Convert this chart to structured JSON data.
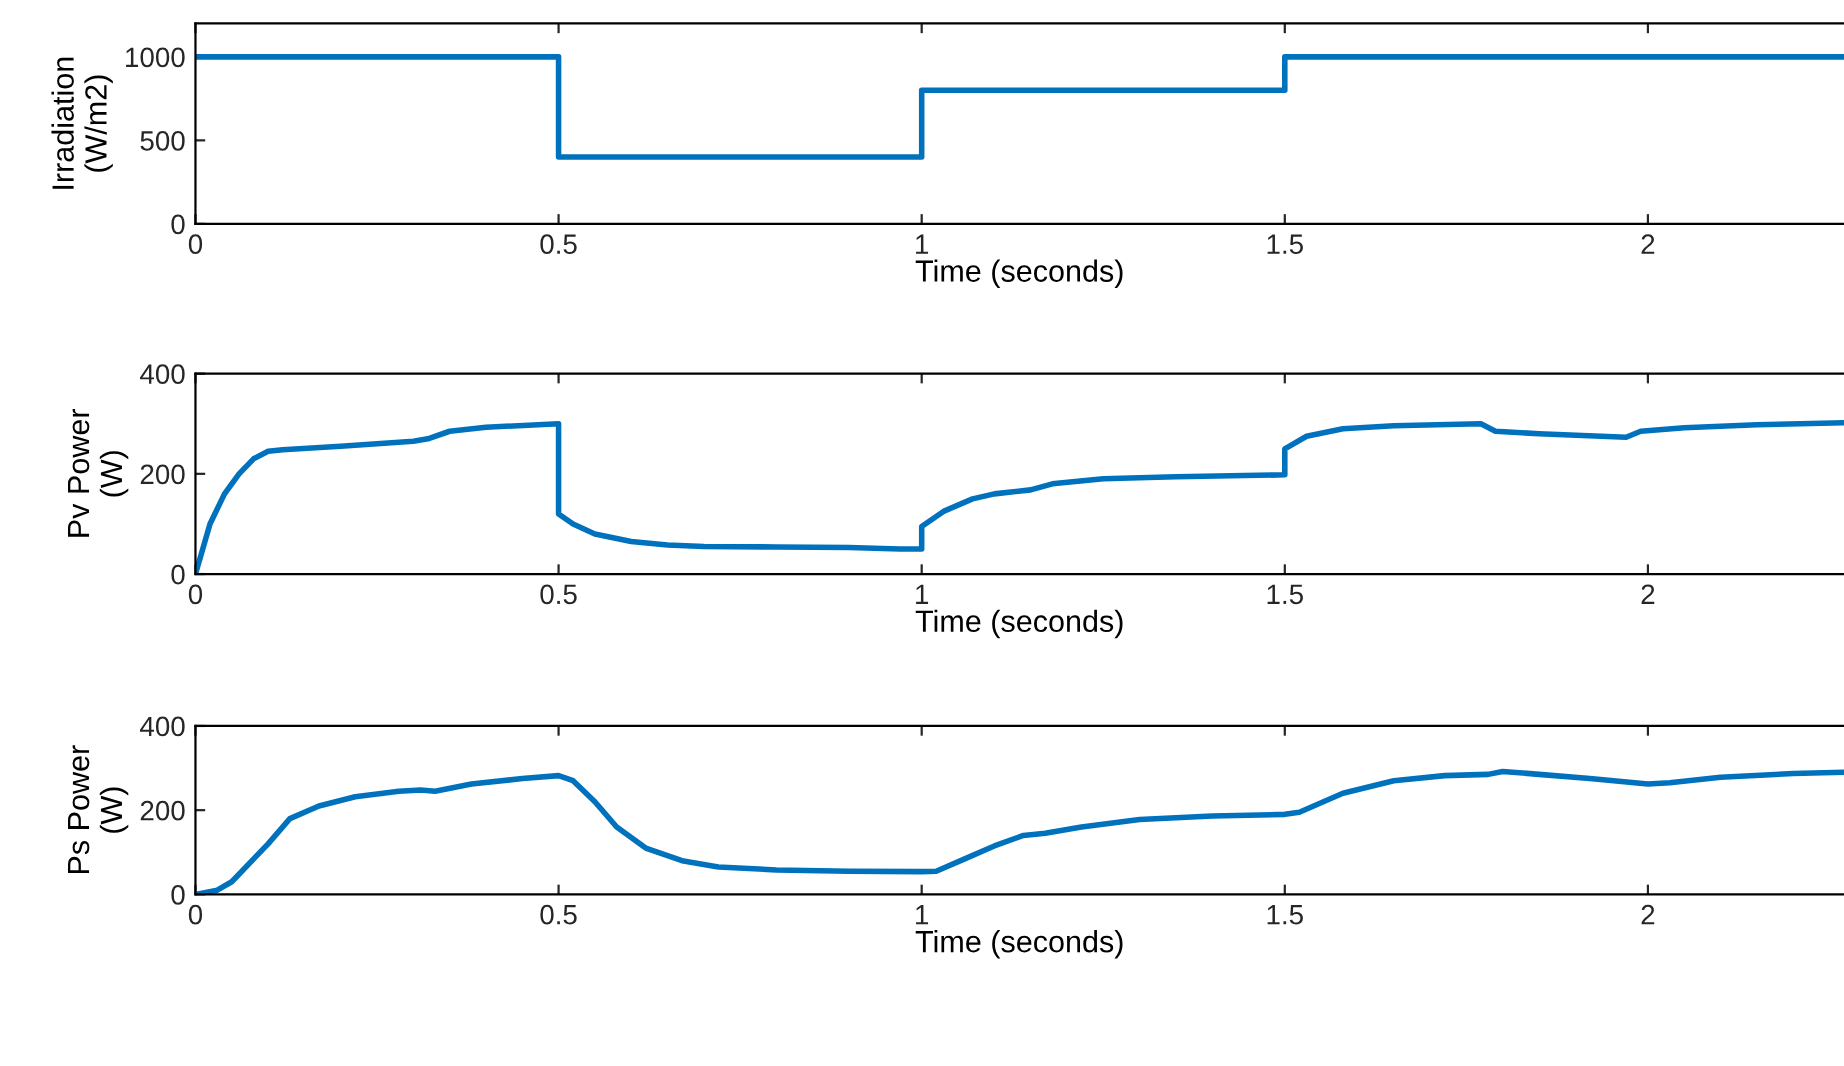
{
  "chart_data": [
    {
      "type": "step",
      "ylabel": "Irradiation\n(W/m2)",
      "xlabel": "Time (seconds)",
      "xlim": [
        0,
        2.27
      ],
      "xticks": [
        0,
        0.5,
        1,
        1.5,
        2
      ],
      "ylim": [
        0,
        1200
      ],
      "yticks": [
        0,
        500,
        1000
      ],
      "grid": false,
      "legend": false,
      "series": [
        {
          "color": "#0072bd",
          "x": [
            0,
            0.5,
            1,
            1.5,
            2.27
          ],
          "values": [
            1000,
            400,
            800,
            1000,
            1000
          ]
        }
      ]
    },
    {
      "type": "line",
      "ylabel": "Pv Power\n(W)",
      "xlabel": "Time (seconds)",
      "xlim": [
        0,
        2.27
      ],
      "xticks": [
        0,
        0.5,
        1,
        1.5,
        2
      ],
      "ylim": [
        0,
        400
      ],
      "yticks": [
        0,
        200,
        400
      ],
      "grid": false,
      "legend": false,
      "series": [
        {
          "color": "#0072bd",
          "x": [
            0,
            0.02,
            0.04,
            0.06,
            0.08,
            0.1,
            0.12,
            0.2,
            0.3,
            0.32,
            0.35,
            0.4,
            0.5,
            0.5,
            0.52,
            0.55,
            0.6,
            0.65,
            0.7,
            0.8,
            0.9,
            0.97,
            1.0,
            1.0,
            1.03,
            1.07,
            1.1,
            1.15,
            1.18,
            1.25,
            1.35,
            1.5,
            1.5,
            1.53,
            1.58,
            1.65,
            1.77,
            1.79,
            1.85,
            1.97,
            1.99,
            2.05,
            2.15,
            2.27
          ],
          "values": [
            0,
            100,
            160,
            200,
            230,
            245,
            248,
            255,
            265,
            270,
            285,
            293,
            300,
            120,
            100,
            80,
            65,
            58,
            55,
            54,
            53,
            50,
            50,
            95,
            125,
            150,
            160,
            168,
            180,
            190,
            194,
            198,
            250,
            275,
            290,
            296,
            300,
            285,
            280,
            273,
            285,
            292,
            298,
            302
          ]
        }
      ]
    },
    {
      "type": "line",
      "ylabel": "Ps Power\n(W)",
      "xlabel": "Time (seconds)",
      "xlim": [
        0,
        2.27
      ],
      "xticks": [
        0,
        0.5,
        1,
        1.5,
        2
      ],
      "ylim": [
        0,
        400
      ],
      "yticks": [
        0,
        200,
        400
      ],
      "grid": false,
      "legend": false,
      "series": [
        {
          "color": "#0072bd",
          "x": [
            0,
            0.03,
            0.05,
            0.1,
            0.13,
            0.17,
            0.22,
            0.28,
            0.31,
            0.33,
            0.38,
            0.45,
            0.5,
            0.52,
            0.55,
            0.58,
            0.62,
            0.67,
            0.72,
            0.8,
            0.9,
            1.0,
            1.02,
            1.06,
            1.1,
            1.14,
            1.17,
            1.22,
            1.3,
            1.4,
            1.5,
            1.52,
            1.58,
            1.65,
            1.72,
            1.78,
            1.8,
            1.85,
            1.92,
            2.0,
            2.03,
            2.1,
            2.2,
            2.27
          ],
          "values": [
            0,
            10,
            30,
            120,
            180,
            210,
            232,
            245,
            248,
            245,
            262,
            275,
            282,
            270,
            220,
            160,
            110,
            80,
            65,
            58,
            55,
            54,
            55,
            85,
            115,
            140,
            145,
            160,
            178,
            186,
            190,
            195,
            240,
            270,
            282,
            285,
            292,
            285,
            275,
            262,
            265,
            278,
            287,
            290
          ]
        }
      ]
    }
  ]
}
